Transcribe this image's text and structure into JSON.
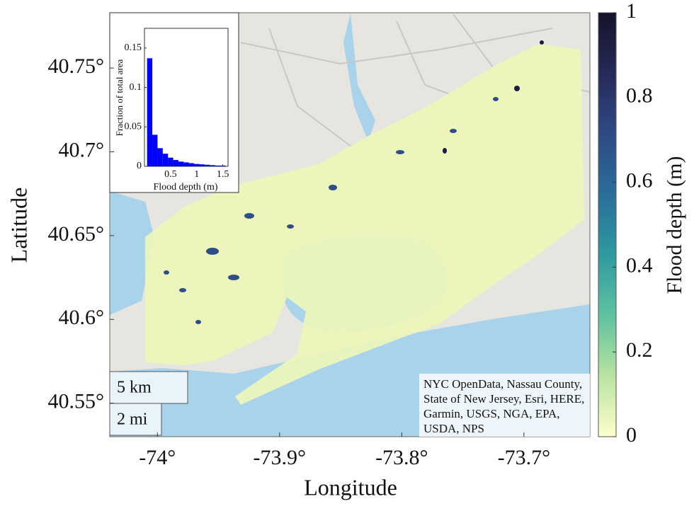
{
  "chart_data": [
    {
      "type": "map",
      "xlabel": "Longitude",
      "ylabel": "Latitude",
      "xlim": [
        -74.039,
        -73.646
      ],
      "ylim": [
        40.53,
        40.783
      ],
      "xticks": [
        {
          "value": -74,
          "label": "-74°"
        },
        {
          "value": -73.9,
          "label": "-73.9°"
        },
        {
          "value": -73.8,
          "label": "-73.8°"
        },
        {
          "value": -73.7,
          "label": "-73.7°"
        }
      ],
      "yticks": [
        {
          "value": 40.55,
          "label": "40.55°"
        },
        {
          "value": 40.6,
          "label": "40.6°"
        },
        {
          "value": 40.65,
          "label": "40.65°"
        },
        {
          "value": 40.7,
          "label": "40.7°"
        },
        {
          "value": 40.75,
          "label": "40.75°"
        }
      ],
      "scale_bar": [
        "5 km",
        "2 mi"
      ],
      "attribution": "NYC OpenData, Nassau County, State of New Jersey, Esri, HERE, Garmin, USGS, NGA, EPA, USDA, NPS"
    },
    {
      "type": "colorbar",
      "label": "Flood depth (m)",
      "lim": [
        0,
        1
      ],
      "ticks": [
        0,
        0.2,
        0.4,
        0.6,
        0.8,
        1
      ],
      "colors": [
        "#ffffcc",
        "#b9e3a1",
        "#5fc2a0",
        "#2e9aa0",
        "#2a6e9a",
        "#2f4a86",
        "#262a58",
        "#14122a"
      ]
    },
    {
      "type": "histogram",
      "xlabel": "Flood depth (m)",
      "ylabel": "Fraction of total area",
      "color": "#0000ff",
      "bins": [
        0.05,
        0.15,
        0.25,
        0.35,
        0.45,
        0.55,
        0.65,
        0.75,
        0.85,
        0.95,
        1.05,
        1.15,
        1.25,
        1.35,
        1.45,
        1.55
      ],
      "values": [
        0.137,
        0.04,
        0.023,
        0.016,
        0.011,
        0.008,
        0.006,
        0.005,
        0.004,
        0.003,
        0.0025,
        0.002,
        0.0015,
        0.001,
        0.001
      ],
      "xlim": [
        0,
        1.6
      ],
      "ylim": [
        0,
        0.175
      ],
      "xticks": [
        0.5,
        1,
        1.5
      ],
      "yticks": [
        0,
        0.05,
        0.1,
        0.15
      ]
    }
  ]
}
